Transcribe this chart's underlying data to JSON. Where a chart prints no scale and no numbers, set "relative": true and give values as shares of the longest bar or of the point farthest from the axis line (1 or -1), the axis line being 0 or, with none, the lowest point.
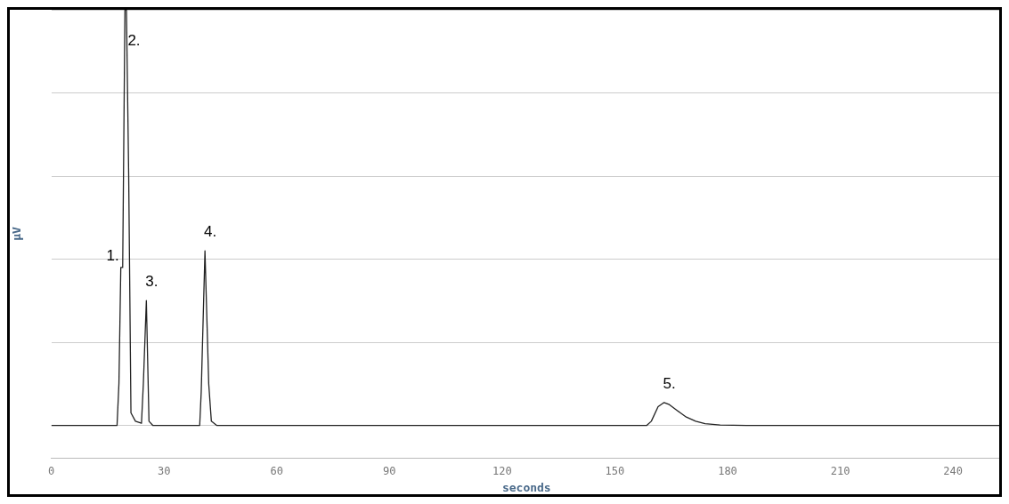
{
  "chart_data": {
    "type": "line",
    "relative": true,
    "xlabel": "seconds",
    "ylabel": "µV",
    "xlim": [
      0,
      253
    ],
    "xticks": [
      0,
      30,
      60,
      90,
      120,
      150,
      180,
      210,
      240
    ],
    "grid": "y",
    "legend": false,
    "marker": "none",
    "line_style": "solid",
    "series": [
      {
        "color": "#222222",
        "x": [
          0,
          17.5,
          18.0,
          18.5,
          19.0,
          19.6,
          20.0,
          20.6,
          21.2,
          22.4,
          24.0,
          24.5,
          25.3,
          26.0,
          27,
          39.5,
          39.9,
          40.9,
          41.9,
          42.6,
          44,
          80,
          158.5,
          159.7,
          161.5,
          163.1,
          164.5,
          166.7,
          169,
          171.5,
          174,
          178,
          185,
          253
        ],
        "values": [
          0,
          0,
          0.1,
          0.38,
          0.38,
          1,
          1,
          0.6,
          0.03,
          0.01,
          0.005,
          0.1,
          0.3,
          0.01,
          0,
          0,
          0.08,
          0.42,
          0.1,
          0.01,
          0,
          0,
          0,
          0.01,
          0.045,
          0.055,
          0.05,
          0.035,
          0.02,
          0.01,
          0.004,
          0.001,
          0,
          0
        ]
      }
    ],
    "annotations": [
      {
        "text": "1.",
        "x": 18.5,
        "y": 0.38
      },
      {
        "text": "2.",
        "x": 20.6,
        "y": 0.88
      },
      {
        "text": "3.",
        "x": 25.3,
        "y": 0.3
      },
      {
        "text": "4.",
        "x": 40.9,
        "y": 0.42
      },
      {
        "text": "5.",
        "x": 163.1,
        "y": 0.055
      }
    ]
  }
}
